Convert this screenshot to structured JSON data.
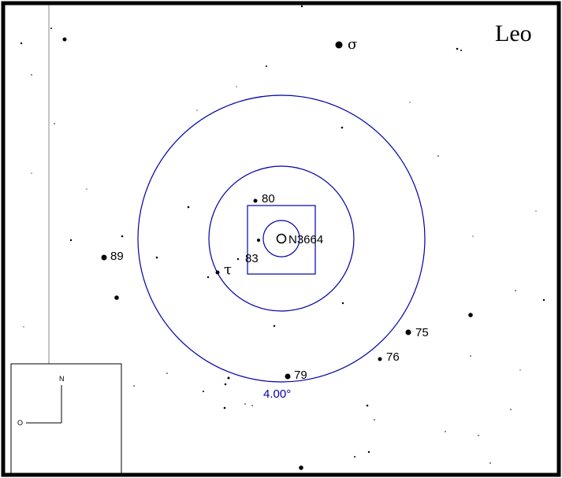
{
  "constellation": "Leo",
  "target": {
    "name": "N3664"
  },
  "ring_label": "4.00°",
  "compass": {
    "north": "N",
    "east": "O"
  },
  "star_labels": {
    "sigma": "σ",
    "tau": "τ",
    "s80": "80",
    "s83": "83",
    "s89": "89",
    "s75": "75",
    "s76": "76",
    "s79": "79"
  },
  "colors": {
    "rings": "#0000aa",
    "ring_label": "#0000aa",
    "stars": "#000000",
    "frame": "#000000",
    "background": "#ffffff"
  }
}
